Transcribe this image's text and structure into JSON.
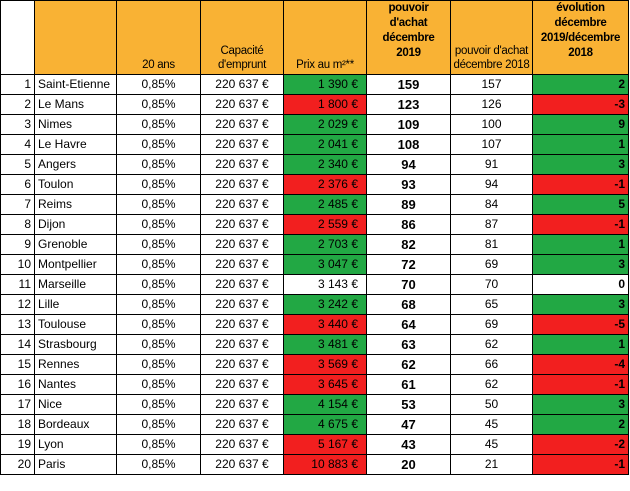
{
  "headers": {
    "corner": "",
    "city": "",
    "duration": "20 ans",
    "capacity": "Capacité d'emprunt",
    "price": "Prix au m²**",
    "power2019": [
      "pouvoir",
      "d'achat",
      "décembre",
      "2019"
    ],
    "power2018": "pouvoir d'achat décembre 2018",
    "evolution": [
      "évolution",
      "décembre",
      "2019/décembre",
      "2018"
    ]
  },
  "colors": {
    "header": "#f9b234",
    "green": "#22a844",
    "red": "#f21f1f"
  },
  "rows": [
    {
      "rank": "1",
      "city": "Saint-Etienne",
      "rate": "0,85%",
      "capacity": "220 637 €",
      "price": "1 390 €",
      "price_color": "green",
      "p2019": "159",
      "p2018": "157",
      "evolution": "2",
      "evo_color": "green"
    },
    {
      "rank": "2",
      "city": "Le Mans",
      "rate": "0,85%",
      "capacity": "220 637 €",
      "price": "1 800 €",
      "price_color": "red",
      "p2019": "123",
      "p2018": "126",
      "evolution": "-3",
      "evo_color": "red"
    },
    {
      "rank": "3",
      "city": "Nimes",
      "rate": "0,85%",
      "capacity": "220 637 €",
      "price": "2 029 €",
      "price_color": "green",
      "p2019": "109",
      "p2018": "100",
      "evolution": "9",
      "evo_color": "green"
    },
    {
      "rank": "4",
      "city": "Le Havre",
      "rate": "0,85%",
      "capacity": "220 637 €",
      "price": "2 041 €",
      "price_color": "green",
      "p2019": "108",
      "p2018": "107",
      "evolution": "1",
      "evo_color": "green"
    },
    {
      "rank": "5",
      "city": "Angers",
      "rate": "0,85%",
      "capacity": "220 637 €",
      "price": "2 340 €",
      "price_color": "green",
      "p2019": "94",
      "p2018": "91",
      "evolution": "3",
      "evo_color": "green"
    },
    {
      "rank": "6",
      "city": "Toulon",
      "rate": "0,85%",
      "capacity": "220 637 €",
      "price": "2 376 €",
      "price_color": "red",
      "p2019": "93",
      "p2018": "94",
      "evolution": "-1",
      "evo_color": "red"
    },
    {
      "rank": "7",
      "city": "Reims",
      "rate": "0,85%",
      "capacity": "220 637 €",
      "price": "2 485 €",
      "price_color": "green",
      "p2019": "89",
      "p2018": "84",
      "evolution": "5",
      "evo_color": "green"
    },
    {
      "rank": "8",
      "city": "Dijon",
      "rate": "0,85%",
      "capacity": "220 637 €",
      "price": "2 559 €",
      "price_color": "red",
      "p2019": "86",
      "p2018": "87",
      "evolution": "-1",
      "evo_color": "red"
    },
    {
      "rank": "9",
      "city": "Grenoble",
      "rate": "0,85%",
      "capacity": "220 637 €",
      "price": "2 703 €",
      "price_color": "green",
      "p2019": "82",
      "p2018": "81",
      "evolution": "1",
      "evo_color": "green"
    },
    {
      "rank": "10",
      "city": "Montpellier",
      "rate": "0,85%",
      "capacity": "220 637 €",
      "price": "3 047 €",
      "price_color": "green",
      "p2019": "72",
      "p2018": "69",
      "evolution": "3",
      "evo_color": "green"
    },
    {
      "rank": "11",
      "city": "Marseille",
      "rate": "0,85%",
      "capacity": "220 637 €",
      "price": "3 143 €",
      "price_color": "white",
      "p2019": "70",
      "p2018": "70",
      "evolution": "0",
      "evo_color": "white"
    },
    {
      "rank": "12",
      "city": "Lille",
      "rate": "0,85%",
      "capacity": "220 637 €",
      "price": "3 242 €",
      "price_color": "green",
      "p2019": "68",
      "p2018": "65",
      "evolution": "3",
      "evo_color": "green"
    },
    {
      "rank": "13",
      "city": "Toulouse",
      "rate": "0,85%",
      "capacity": "220 637 €",
      "price": "3 440 €",
      "price_color": "red",
      "p2019": "64",
      "p2018": "69",
      "evolution": "-5",
      "evo_color": "red"
    },
    {
      "rank": "14",
      "city": "Strasbourg",
      "rate": "0,85%",
      "capacity": "220 637 €",
      "price": "3 481 €",
      "price_color": "green",
      "p2019": "63",
      "p2018": "62",
      "evolution": "1",
      "evo_color": "green"
    },
    {
      "rank": "15",
      "city": "Rennes",
      "rate": "0,85%",
      "capacity": "220 637 €",
      "price": "3 569 €",
      "price_color": "red",
      "p2019": "62",
      "p2018": "66",
      "evolution": "-4",
      "evo_color": "red"
    },
    {
      "rank": "16",
      "city": "Nantes",
      "rate": "0,85%",
      "capacity": "220 637 €",
      "price": "3 645 €",
      "price_color": "red",
      "p2019": "61",
      "p2018": "62",
      "evolution": "-1",
      "evo_color": "red"
    },
    {
      "rank": "17",
      "city": "Nice",
      "rate": "0,85%",
      "capacity": "220 637 €",
      "price": "4 154 €",
      "price_color": "green",
      "p2019": "53",
      "p2018": "50",
      "evolution": "3",
      "evo_color": "green"
    },
    {
      "rank": "18",
      "city": "Bordeaux",
      "rate": "0,85%",
      "capacity": "220 637 €",
      "price": "4 675 €",
      "price_color": "green",
      "p2019": "47",
      "p2018": "45",
      "evolution": "2",
      "evo_color": "green"
    },
    {
      "rank": "19",
      "city": "Lyon",
      "rate": "0,85%",
      "capacity": "220 637 €",
      "price": "5 167 €",
      "price_color": "red",
      "p2019": "43",
      "p2018": "45",
      "evolution": "-2",
      "evo_color": "red"
    },
    {
      "rank": "20",
      "city": "Paris",
      "rate": "0,85%",
      "capacity": "220 637 €",
      "price": "10 883 €",
      "price_color": "red",
      "p2019": "20",
      "p2018": "21",
      "evolution": "-1",
      "evo_color": "red"
    }
  ]
}
